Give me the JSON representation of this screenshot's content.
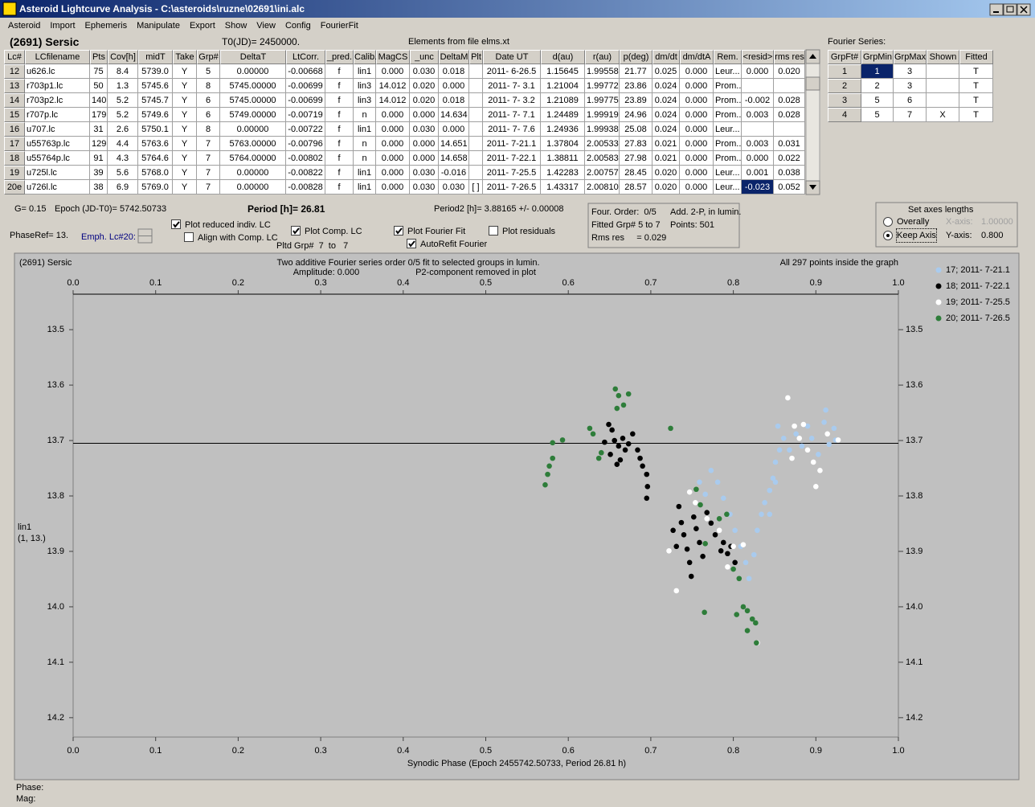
{
  "window": {
    "title": "Asteroid Lightcurve Analysis - C:\\asteroids\\ruzne\\02691\\ini.alc",
    "menu": [
      "Asteroid",
      "Import",
      "Ephemeris",
      "Manipulate",
      "Export",
      "Show",
      "View",
      "Config",
      "FourierFit"
    ]
  },
  "header": {
    "name": "(2691) Sersic",
    "t0": "T0(JD)= 2450000.",
    "elements": "Elements from file elms.xt"
  },
  "lc_table": {
    "columns": [
      "Lc#",
      "LCfilename",
      "Pts",
      "Cov[h]",
      "midT",
      "Take",
      "Grp#",
      "DeltaT",
      "LtCorr.",
      "_pred.",
      "Calib.",
      "MagCS",
      "_unc",
      "DeltaM",
      "Plt",
      "Date UT",
      "d(au)",
      "r(au)",
      "p(deg)",
      "dm/dt",
      "dm/dtA",
      "Rem.",
      "<resid>",
      "rms res"
    ],
    "rows": [
      [
        "12",
        "u626.lc",
        "75",
        "8.4",
        "5739.0",
        "Y",
        "5",
        "0.00000",
        "-0.00668",
        "f",
        "lin1",
        "0.000",
        "0.030",
        "0.018",
        null,
        "2011- 6-26.5",
        "1.15645",
        "1.99558",
        "21.77",
        "0.025",
        "0.000",
        "Leur...",
        "0.000",
        "0.020"
      ],
      [
        "13",
        "r703p1.lc",
        "50",
        "1.3",
        "5745.6",
        "Y",
        "8",
        "5745.00000",
        "-0.00699",
        "f",
        "lin3",
        "14.012",
        "0.020",
        "0.000",
        null,
        "2011- 7- 3.1",
        "1.21004",
        "1.99772",
        "23.86",
        "0.024",
        "0.000",
        "Prom...",
        null,
        null
      ],
      [
        "14",
        "r703p2.lc",
        "140",
        "5.2",
        "5745.7",
        "Y",
        "6",
        "5745.00000",
        "-0.00699",
        "f",
        "lin3",
        "14.012",
        "0.020",
        "0.018",
        null,
        "2011- 7- 3.2",
        "1.21089",
        "1.99775",
        "23.89",
        "0.024",
        "0.000",
        "Prom...",
        "-0.002",
        "0.028"
      ],
      [
        "15",
        "r707p.lc",
        "179",
        "5.2",
        "5749.6",
        "Y",
        "6",
        "5749.00000",
        "-0.00719",
        "f",
        "n",
        "0.000",
        "0.000",
        "14.634",
        null,
        "2011- 7- 7.1",
        "1.24489",
        "1.99919",
        "24.96",
        "0.024",
        "0.000",
        "Prom...",
        "0.003",
        "0.028"
      ],
      [
        "16",
        "u707.lc",
        "31",
        "2.6",
        "5750.1",
        "Y",
        "8",
        "0.00000",
        "-0.00722",
        "f",
        "lin1",
        "0.000",
        "0.030",
        "0.000",
        null,
        "2011- 7- 7.6",
        "1.24936",
        "1.99938",
        "25.08",
        "0.024",
        "0.000",
        "Leur...",
        null,
        null
      ],
      [
        "17",
        "u55763p.lc",
        "129",
        "4.4",
        "5763.6",
        "Y",
        "7",
        "5763.00000",
        "-0.00796",
        "f",
        "n",
        "0.000",
        "0.000",
        "14.651",
        null,
        "2011- 7-21.1",
        "1.37804",
        "2.00533",
        "27.83",
        "0.021",
        "0.000",
        "Prom...",
        "0.003",
        "0.031"
      ],
      [
        "18",
        "u55764p.lc",
        "91",
        "4.3",
        "5764.6",
        "Y",
        "7",
        "5764.00000",
        "-0.00802",
        "f",
        "n",
        "0.000",
        "0.000",
        "14.658",
        null,
        "2011- 7-22.1",
        "1.38811",
        "2.00583",
        "27.98",
        "0.021",
        "0.000",
        "Prom...",
        "0.000",
        "0.022"
      ],
      [
        "19",
        "u725l.lc",
        "39",
        "5.6",
        "5768.0",
        "Y",
        "7",
        "0.00000",
        "-0.00822",
        "f",
        "lin1",
        "0.000",
        "0.030",
        "-0.016",
        null,
        "2011- 7-25.5",
        "1.42283",
        "2.00757",
        "28.45",
        "0.020",
        "0.000",
        "Leur...",
        "0.001",
        "0.038"
      ],
      [
        "20e",
        "u726l.lc",
        "38",
        "6.9",
        "5769.0",
        "Y",
        "7",
        "0.00000",
        "-0.00828",
        "f",
        "lin1",
        "0.000",
        "0.030",
        "0.030",
        "[ ]",
        "2011- 7-26.5",
        "1.43317",
        "2.00810",
        "28.57",
        "0.020",
        "0.000",
        "Leur...",
        "-0.023",
        "0.052"
      ]
    ]
  },
  "fourier": {
    "label": "Fourier Series:",
    "columns": [
      "GrpFt#",
      "GrpMin",
      "GrpMax",
      "Shown",
      "Fitted"
    ],
    "rows": [
      [
        "1",
        "1",
        "3",
        null,
        "T"
      ],
      [
        "2",
        "2",
        "3",
        null,
        "T"
      ],
      [
        "3",
        "5",
        "6",
        null,
        "T"
      ],
      [
        "4",
        "5",
        "7",
        "X",
        "T"
      ]
    ]
  },
  "info": {
    "g": "G= 0.15",
    "epoch": "Epoch (JD-T0)= 5742.50733",
    "period": "Period [h]= 26.81",
    "period2": "Period2 [h]= 3.88165 +/- 0.00008",
    "phase_ref": "PhaseRef= 13.",
    "emph": "Emph. Lc#20:",
    "pltd_grp": "Pltd Grp#  7  to   7"
  },
  "checkboxes": [
    {
      "label": "Plot reduced indiv. LC",
      "checked": true
    },
    {
      "label": "Align with Comp. LC",
      "checked": false
    },
    {
      "label": "Plot Comp. LC",
      "checked": true
    },
    {
      "label": "Plot Fourier Fit",
      "checked": true
    },
    {
      "label": "AutoRefit Fourier",
      "checked": true
    },
    {
      "label": "Plot residuals",
      "checked": false
    }
  ],
  "fit_box": [
    "Four. Order:  0/5",
    "Add. 2-P, in lumin.",
    "Fitted Grp# 5 to 7",
    "Points: 501",
    "Rms res     = 0.029"
  ],
  "axes_box": {
    "title": "Set axes lengths",
    "options": [
      {
        "label": "Overally",
        "selected": false
      },
      {
        "label": "Keep Axis",
        "selected": true
      }
    ],
    "x_label": "X-axis:",
    "x_value": "1.00000",
    "y_label": "Y-axis:",
    "y_value": "0.800"
  },
  "chart_data": {
    "type": "scatter",
    "title": "(2691) Sersic",
    "annotations": [
      "Two additive Fourier series order 0/5 fit to selected groups in lumin.",
      "Amplitude: 0.000",
      "P2-component removed in plot"
    ],
    "note": "All 297 points inside the graph",
    "y_label": "lin1",
    "y_sublabel": "(1, 13.)",
    "x_label": "Synodic Phase (Epoch 2455742.50733, Period 26.81 h)",
    "xlim": [
      0,
      1
    ],
    "ylim": [
      13.436,
      14.235
    ],
    "y_inverted": true,
    "xticks": [
      {
        "value": 0,
        "label": "0.0"
      },
      0.1,
      0.2,
      0.3,
      0.4,
      0.5,
      0.6,
      0.7,
      0.8,
      0.9,
      {
        "value": 1,
        "label": "1.0"
      }
    ],
    "yticks": [
      13.5,
      13.6,
      13.7,
      13.8,
      13.9,
      {
        "value": 14.0,
        "label": "14.0"
      },
      14.1,
      14.2
    ],
    "hline": 13.705,
    "series": [
      {
        "name": "17; 2011- 7-21.1",
        "color": "#a9cbee",
        "x": [
          0.759,
          0.766,
          0.773,
          0.781,
          0.788,
          0.796,
          0.802,
          0.809,
          0.815,
          0.819,
          0.825,
          0.829,
          0.834,
          0.838,
          0.844,
          0.848,
          0.851,
          0.856,
          0.854,
          0.861,
          0.868,
          0.876,
          0.883,
          0.89,
          0.895,
          0.903,
          0.91,
          0.912,
          0.916,
          0.922,
          0.924,
          0.851,
          0.844
        ],
        "values": [
          13.775,
          13.797,
          13.754,
          13.775,
          13.804,
          13.833,
          13.862,
          13.891,
          13.92,
          13.949,
          13.906,
          13.862,
          13.833,
          13.812,
          13.79,
          13.768,
          13.739,
          13.717,
          13.674,
          13.696,
          13.717,
          13.688,
          13.71,
          13.674,
          13.696,
          13.725,
          13.667,
          13.645,
          13.707,
          13.678,
          13.699,
          13.775,
          13.833
        ]
      },
      {
        "name": "18; 2011- 7-22.1",
        "color": "#000000",
        "x": [
          0.644,
          0.649,
          0.653,
          0.656,
          0.661,
          0.666,
          0.669,
          0.673,
          0.678,
          0.684,
          0.687,
          0.69,
          0.695,
          0.696,
          0.695,
          0.659,
          0.663,
          0.651,
          0.734,
          0.737,
          0.74,
          0.744,
          0.747,
          0.749,
          0.752,
          0.755,
          0.759,
          0.763,
          0.768,
          0.773,
          0.778,
          0.785,
          0.788,
          0.793,
          0.797,
          0.802,
          0.727,
          0.731
        ],
        "values": [
          13.703,
          13.671,
          13.681,
          13.7,
          13.71,
          13.696,
          13.717,
          13.706,
          13.688,
          13.717,
          13.732,
          13.746,
          13.761,
          13.783,
          13.804,
          13.743,
          13.735,
          13.725,
          13.819,
          13.848,
          13.87,
          13.896,
          13.92,
          13.945,
          13.838,
          13.859,
          13.884,
          13.909,
          13.83,
          13.849,
          13.87,
          13.899,
          13.884,
          13.904,
          13.891,
          13.92,
          13.862,
          13.891
        ]
      },
      {
        "name": "19; 2011- 7-25.5",
        "color": "#ffffff",
        "x": [
          0.722,
          0.731,
          0.747,
          0.754,
          0.768,
          0.783,
          0.793,
          0.8,
          0.812,
          0.829,
          0.866,
          0.874,
          0.88,
          0.89,
          0.897,
          0.9,
          0.905,
          0.914,
          0.927,
          0.885,
          0.871
        ],
        "values": [
          13.899,
          13.971,
          13.793,
          13.812,
          13.841,
          13.862,
          13.928,
          13.891,
          13.888,
          14.065,
          13.623,
          13.674,
          13.696,
          13.717,
          13.739,
          13.783,
          13.754,
          13.688,
          13.699,
          13.671,
          13.732
        ]
      },
      {
        "name": "20; 2011- 7-26.5",
        "color": "#2e7d3a",
        "x": [
          0.572,
          0.575,
          0.577,
          0.581,
          0.581,
          0.593,
          0.626,
          0.63,
          0.637,
          0.64,
          0.657,
          0.661,
          0.673,
          0.659,
          0.667,
          0.724,
          0.755,
          0.76,
          0.766,
          0.765,
          0.8,
          0.807,
          0.804,
          0.812,
          0.817,
          0.823,
          0.827,
          0.817,
          0.828,
          0.792,
          0.783
        ],
        "values": [
          13.78,
          13.761,
          13.746,
          13.732,
          13.704,
          13.699,
          13.678,
          13.688,
          13.732,
          13.722,
          13.607,
          13.619,
          13.616,
          13.642,
          13.636,
          13.678,
          13.788,
          13.816,
          13.886,
          14.01,
          13.932,
          13.949,
          14.014,
          14.0,
          14.007,
          14.022,
          14.029,
          14.043,
          14.065,
          13.833,
          13.841
        ]
      }
    ]
  },
  "footer": [
    "Phase:",
    "Mag:"
  ]
}
